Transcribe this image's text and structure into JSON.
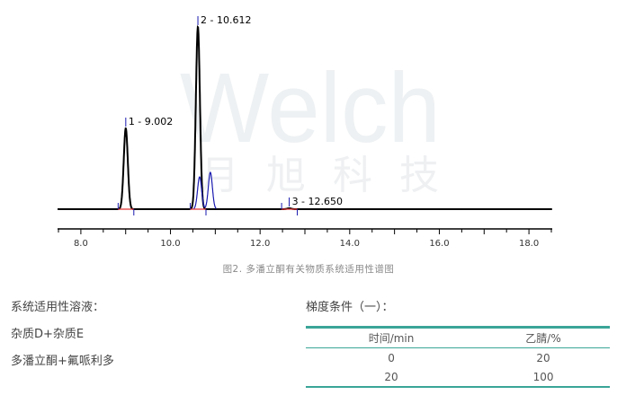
{
  "chart_data": {
    "type": "line",
    "title": "",
    "caption": "图2. 多潘立酮有关物质系统适用性谱图",
    "xlabel": "",
    "ylabel": "",
    "xlim": [
      7.48,
      18.52
    ],
    "xticks": [
      "8.0",
      "10.0",
      "12.0",
      "14.0",
      "16.0",
      "18.0"
    ],
    "grid": false,
    "series": [
      {
        "color": "#000000",
        "peaks": [
          {
            "label": "1 - 9.002",
            "rt": 9.002,
            "height": 90
          },
          {
            "label": "2 - 10.612",
            "rt": 10.612,
            "height": 203
          },
          {
            "label": "3 - 12.650",
            "rt": 12.65,
            "height": 1
          }
        ]
      },
      {
        "color": "#1a1ab0",
        "peaks": [
          {
            "rt": 10.65,
            "height": 36
          },
          {
            "rt": 10.89,
            "height": 41
          }
        ]
      }
    ],
    "watermark": {
      "logo": "Welch",
      "text": "月旭科技"
    }
  },
  "left": {
    "title": "系统适用性溶液：",
    "line1": "杂质D+杂质E",
    "line2": "多潘立酮+氟哌利多"
  },
  "gradient": {
    "title": "梯度条件（一）：",
    "headers": [
      "时间/min",
      "乙腈/%"
    ],
    "rows": [
      [
        "0",
        "20"
      ],
      [
        "20",
        "100"
      ]
    ]
  }
}
